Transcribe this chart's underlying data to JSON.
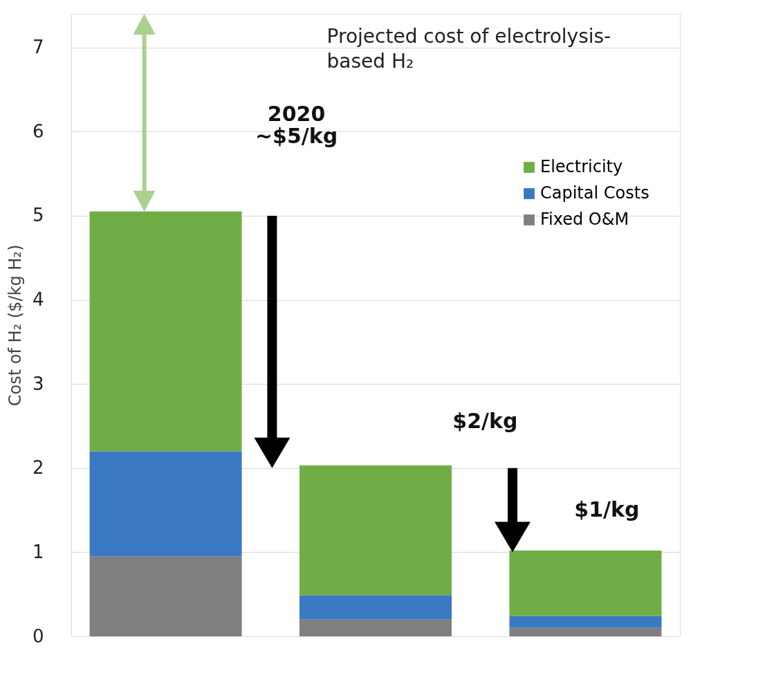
{
  "chart_data": {
    "type": "bar",
    "title": "Projected cost of electrolysis-based H₂",
    "ylabel": "Cost of H₂ ($/kg H₂)",
    "categories": [
      null,
      null,
      null
    ],
    "stacked": true,
    "series": [
      {
        "name": "Fixed O&M",
        "color": "#7f7f7f",
        "values": [
          0.95,
          0.2,
          0.1
        ]
      },
      {
        "name": "Capital Costs",
        "color": "#3a78c4",
        "values": [
          1.25,
          0.29,
          0.14
        ]
      },
      {
        "name": "Electricity",
        "color": "#70ad47",
        "values": [
          2.85,
          1.54,
          0.78
        ]
      }
    ],
    "ylim": [
      0,
      7.4
    ],
    "yticks": [
      0,
      1,
      2,
      3,
      4,
      5,
      6,
      7
    ],
    "grid": "y",
    "legend": "top right",
    "tick_labels": "y",
    "annotations": [
      "2020\n~$5/kg",
      "$2/kg",
      "$1/kg"
    ]
  }
}
